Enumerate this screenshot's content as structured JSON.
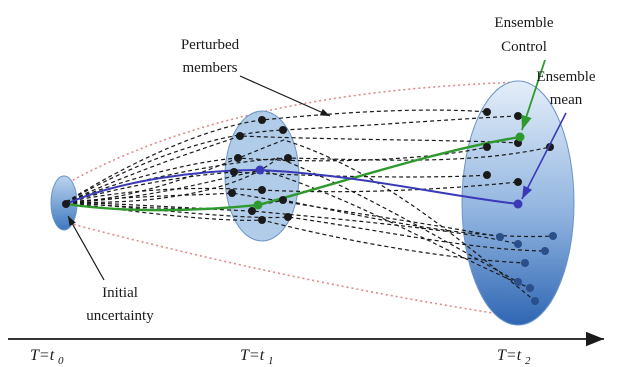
{
  "labels": {
    "perturbed_line1": "Perturbed",
    "perturbed_line2": "members",
    "control_line1": "Ensemble",
    "control_line2": "Control",
    "mean_line1": "Ensemble",
    "mean_line2": "mean",
    "initial_line1": "Initial",
    "initial_line2": "uncertainty"
  },
  "time_axis": {
    "t0_prefix": "T=t",
    "t0_sub": "0",
    "t1_prefix": "T=t",
    "t1_sub": "1",
    "t2_prefix": "T=t",
    "t2_sub": "2"
  },
  "colors": {
    "control": "#2e9a2e",
    "mean": "#3a3ab8",
    "members": "#1a1a1a",
    "envelope": "#e08a8a",
    "ellipse_fill": "#4f86c8"
  }
}
